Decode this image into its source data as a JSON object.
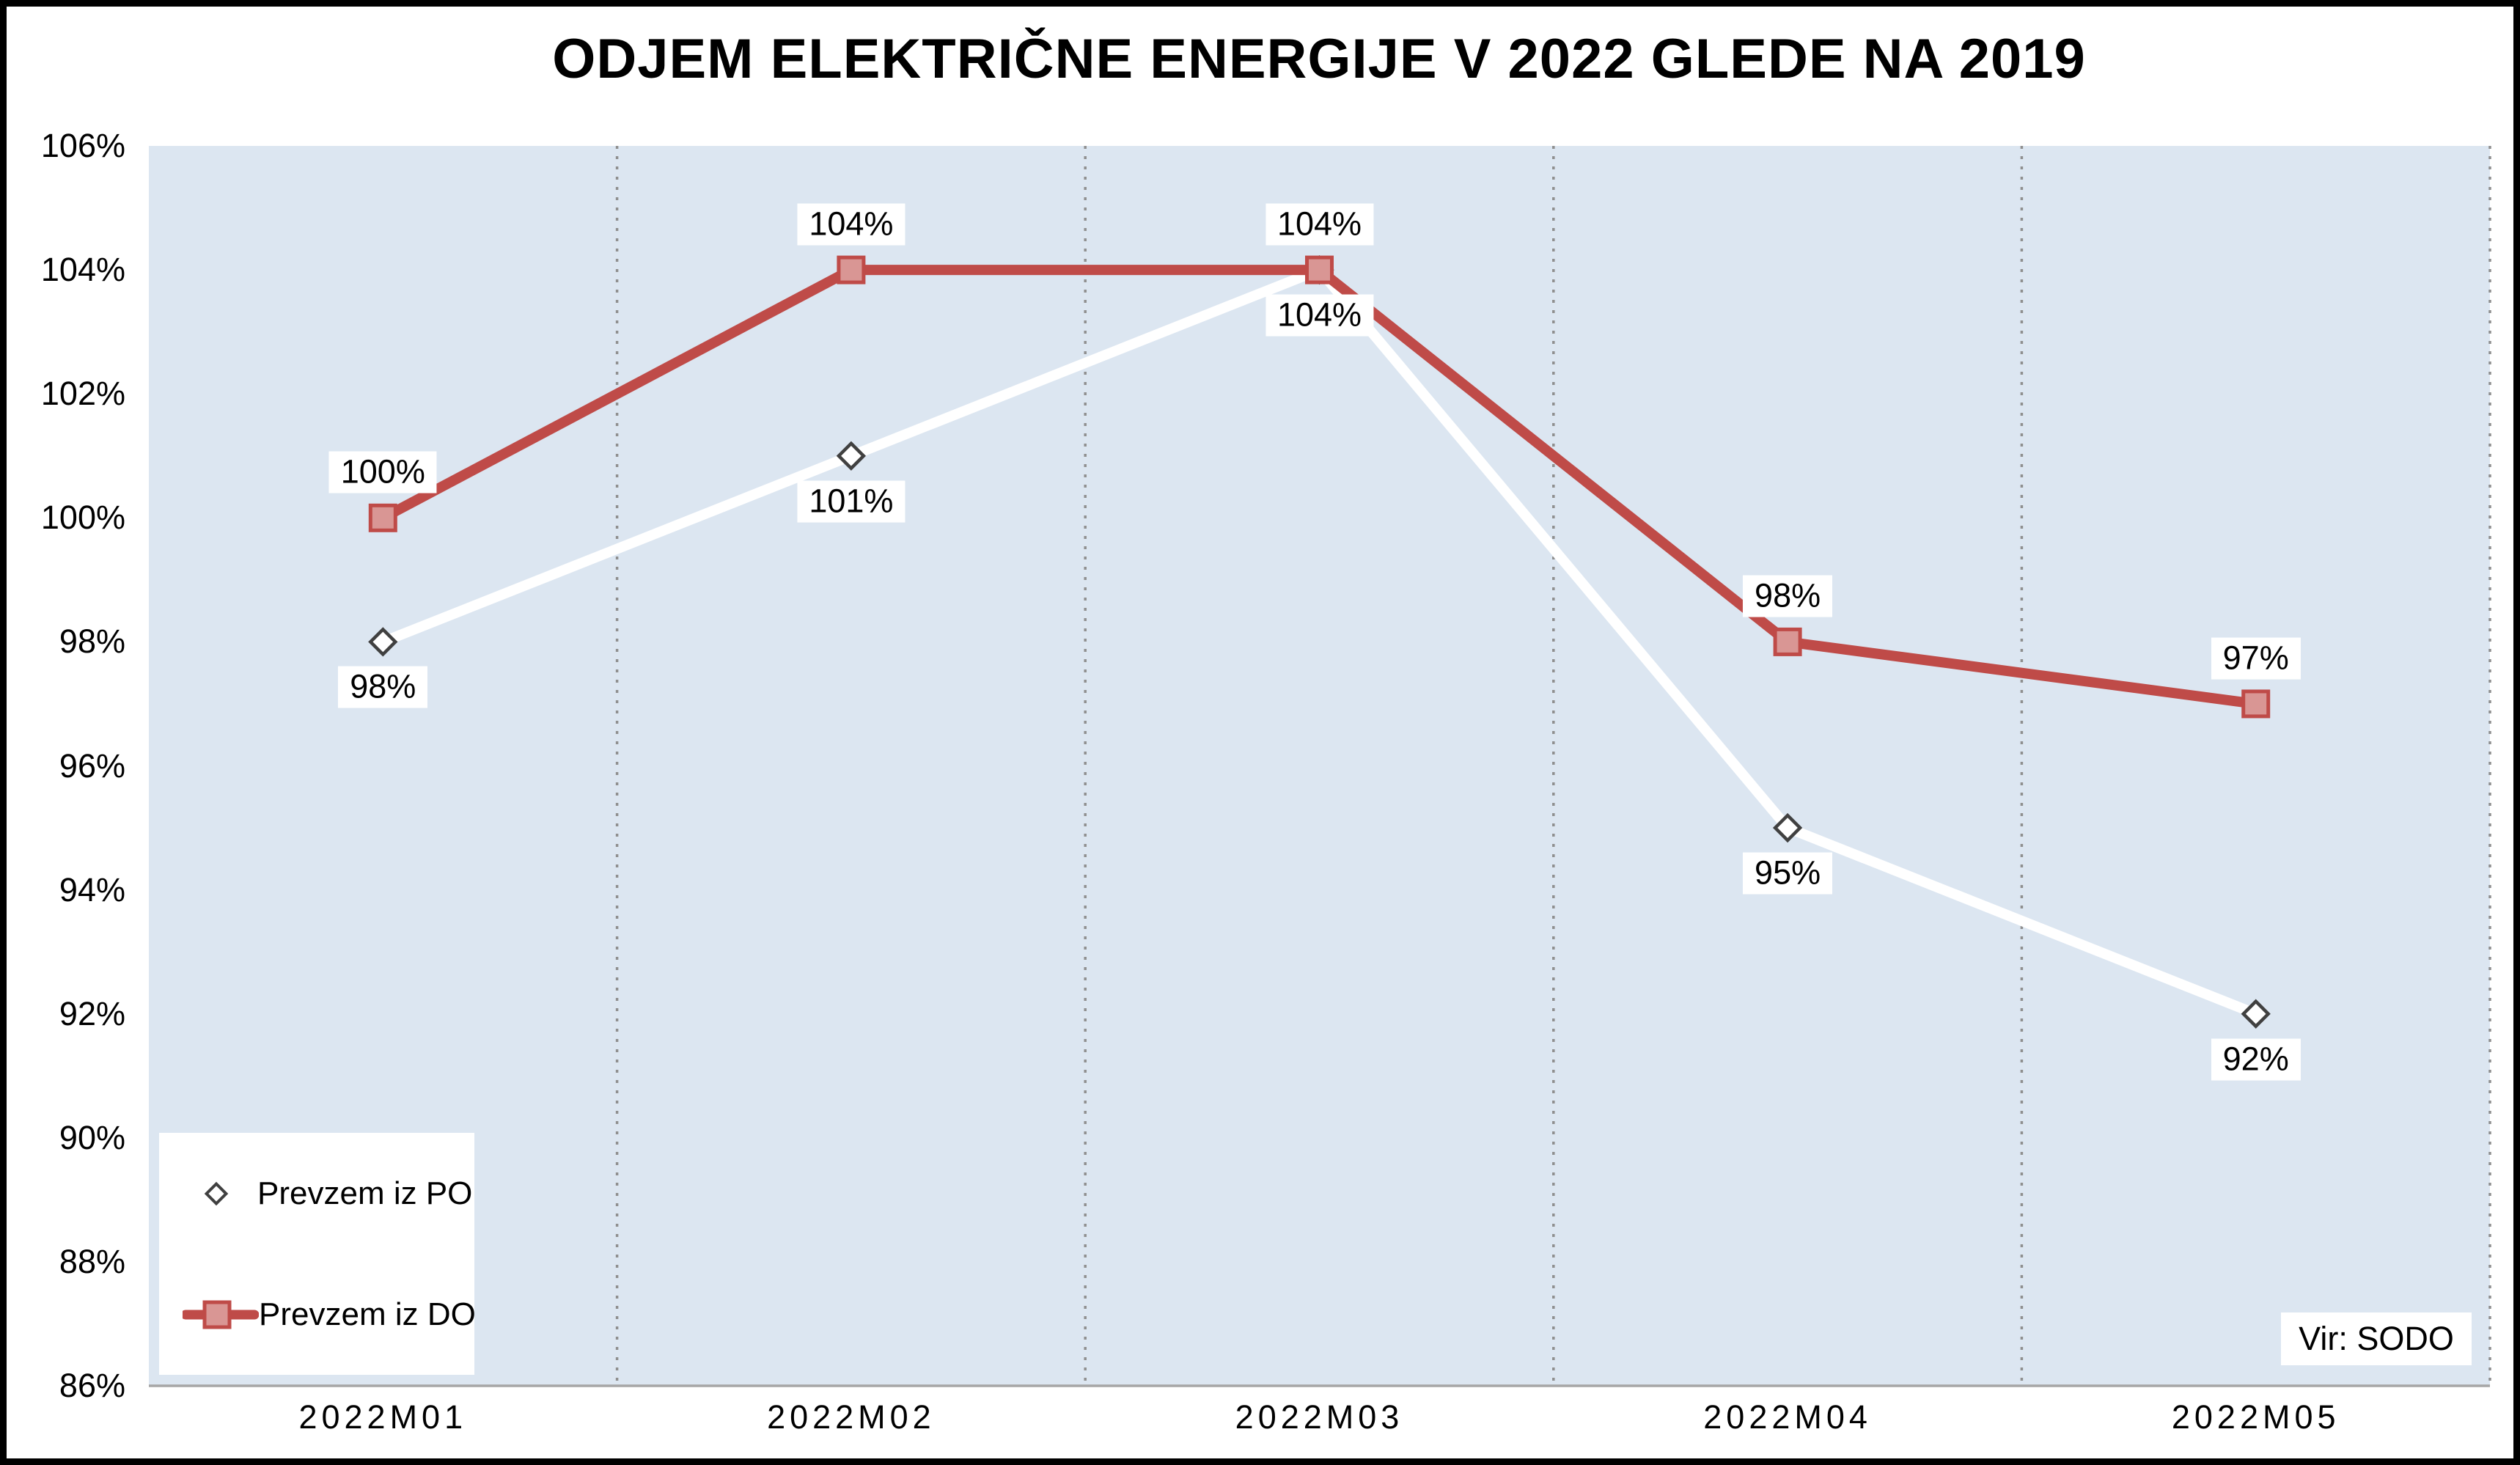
{
  "title": "ODJEM ELEKTRIČNE ENERGIJE V 2022 GLEDE NA 2019",
  "source_note": "Vir: SODO",
  "legend": {
    "position": "bottom-left",
    "items": [
      {
        "label": "Prevzem iz PO",
        "marker": "diamond"
      },
      {
        "label": "Prevzem iz DO",
        "marker": "square-on-line"
      }
    ]
  },
  "colors": {
    "plot_bg": "#dce6f1",
    "gridline": "#8f8f8f",
    "axis_line": "#a6a6a6",
    "do_line": "#bf4b48",
    "do_fill": "#d99694",
    "po_line": "#ffffff",
    "po_marker_stroke": "#404040",
    "label_bg": "#ffffff",
    "text": "#000000",
    "frame_border": "#000000"
  },
  "chart_data": {
    "type": "line",
    "categories": [
      "2022M01",
      "2022M02",
      "2022M03",
      "2022M04",
      "2022M05"
    ],
    "series": [
      {
        "name": "Prevzem iz PO",
        "key": "po",
        "values": [
          98,
          101,
          104,
          95,
          92
        ],
        "labels": [
          "98%",
          "101%",
          "104%",
          "95%",
          "92%"
        ],
        "marker": "diamond",
        "label_position": "below",
        "line_color": "#ffffff",
        "marker_fill": "#ffffff",
        "marker_stroke": "#404040"
      },
      {
        "name": "Prevzem iz DO",
        "key": "do",
        "values": [
          100,
          104,
          104,
          98,
          97
        ],
        "labels": [
          "100%",
          "104%",
          "104%",
          "98%",
          "97%"
        ],
        "marker": "square",
        "label_position": "above",
        "line_color": "#bf4b48",
        "marker_fill": "#d99694",
        "marker_stroke": "#bf4b48"
      }
    ],
    "y_axis": {
      "ticks": [
        "106%",
        "104%",
        "102%",
        "100%",
        "98%",
        "96%",
        "94%",
        "92%",
        "90%",
        "88%",
        "86%"
      ],
      "min": 86,
      "max": 106,
      "step": 2
    },
    "grid": {
      "vertical": "dashed",
      "horizontal": "none"
    },
    "legend_position": "bottom-left",
    "title": "ODJEM ELEKTRIČNE ENERGIJE V 2022 GLEDE NA 2019"
  }
}
